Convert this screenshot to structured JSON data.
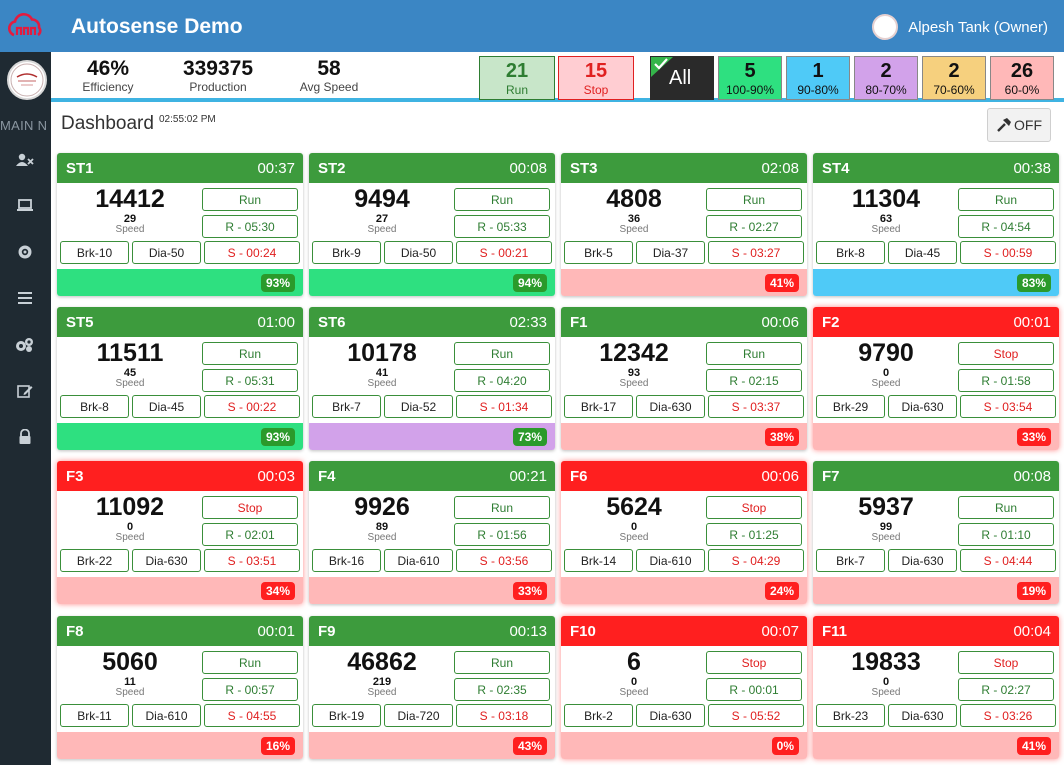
{
  "app": {
    "title": "Autosense Demo"
  },
  "user": {
    "name": "Alpesh Tank (Owner)"
  },
  "sidebar": {
    "section_label": "MAIN N"
  },
  "stats": [
    {
      "value": "46%",
      "label": "Efficiency"
    },
    {
      "value": "339375",
      "label": "Production"
    },
    {
      "value": "58",
      "label": "Avg Speed"
    }
  ],
  "filters": {
    "run": {
      "count": "21",
      "label": "Run"
    },
    "stop": {
      "count": "15",
      "label": "Stop"
    },
    "all": {
      "label": "All"
    },
    "ranges": [
      {
        "count": "5",
        "label": "100-90%",
        "color": "#2ee080"
      },
      {
        "count": "1",
        "label": "90-80%",
        "color": "#4fcaf7"
      },
      {
        "count": "2",
        "label": "80-70%",
        "color": "#d2a2ea"
      },
      {
        "count": "2",
        "label": "70-60%",
        "color": "#f6d07e"
      },
      {
        "count": "26",
        "label": "60-0%",
        "color": "#ffb8b8"
      }
    ]
  },
  "dashboard": {
    "title": "Dashboard",
    "time": "02:55:02 PM",
    "toggle_label": "OFF"
  },
  "labels": {
    "speed": "Speed"
  },
  "colors": {
    "run_head": "#3d9b3d",
    "stop_head": "#ff1f1f",
    "badge_green": "#2b9a2b",
    "badge_red": "#ff1f1f",
    "band_high": "#2ee080",
    "band_mid": "#4fcaf7",
    "band_70": "#d2a2ea",
    "band_low": "#ffb8b8"
  },
  "machines": [
    {
      "name": "ST1",
      "time": "00:37",
      "production": "14412",
      "speed": "29",
      "status": "Run",
      "run": "R - 05:30",
      "brk": "Brk-10",
      "dia": "Dia-50",
      "stop": "S - 00:24",
      "efficiency": "93%",
      "band": "high"
    },
    {
      "name": "ST2",
      "time": "00:08",
      "production": "9494",
      "speed": "27",
      "status": "Run",
      "run": "R - 05:33",
      "brk": "Brk-9",
      "dia": "Dia-50",
      "stop": "S - 00:21",
      "efficiency": "94%",
      "band": "high"
    },
    {
      "name": "ST3",
      "time": "02:08",
      "production": "4808",
      "speed": "36",
      "status": "Run",
      "run": "R - 02:27",
      "brk": "Brk-5",
      "dia": "Dia-37",
      "stop": "S - 03:27",
      "efficiency": "41%",
      "band": "low"
    },
    {
      "name": "ST4",
      "time": "00:38",
      "production": "11304",
      "speed": "63",
      "status": "Run",
      "run": "R - 04:54",
      "brk": "Brk-8",
      "dia": "Dia-45",
      "stop": "S - 00:59",
      "efficiency": "83%",
      "band": "mid"
    },
    {
      "name": "ST5",
      "time": "01:00",
      "production": "11511",
      "speed": "45",
      "status": "Run",
      "run": "R - 05:31",
      "brk": "Brk-8",
      "dia": "Dia-45",
      "stop": "S - 00:22",
      "efficiency": "93%",
      "band": "high"
    },
    {
      "name": "ST6",
      "time": "02:33",
      "production": "10178",
      "speed": "41",
      "status": "Run",
      "run": "R - 04:20",
      "brk": "Brk-7",
      "dia": "Dia-52",
      "stop": "S - 01:34",
      "efficiency": "73%",
      "band": "p70"
    },
    {
      "name": "F1",
      "time": "00:06",
      "production": "12342",
      "speed": "93",
      "status": "Run",
      "run": "R - 02:15",
      "brk": "Brk-17",
      "dia": "Dia-630",
      "stop": "S - 03:37",
      "efficiency": "38%",
      "band": "low"
    },
    {
      "name": "F2",
      "time": "00:01",
      "production": "9790",
      "speed": "0",
      "status": "Stop",
      "run": "R - 01:58",
      "brk": "Brk-29",
      "dia": "Dia-630",
      "stop": "S - 03:54",
      "efficiency": "33%",
      "band": "low"
    },
    {
      "name": "F3",
      "time": "00:03",
      "production": "11092",
      "speed": "0",
      "status": "Stop",
      "run": "R - 02:01",
      "brk": "Brk-22",
      "dia": "Dia-630",
      "stop": "S - 03:51",
      "efficiency": "34%",
      "band": "low"
    },
    {
      "name": "F4",
      "time": "00:21",
      "production": "9926",
      "speed": "89",
      "status": "Run",
      "run": "R - 01:56",
      "brk": "Brk-16",
      "dia": "Dia-610",
      "stop": "S - 03:56",
      "efficiency": "33%",
      "band": "low"
    },
    {
      "name": "F6",
      "time": "00:06",
      "production": "5624",
      "speed": "0",
      "status": "Stop",
      "run": "R - 01:25",
      "brk": "Brk-14",
      "dia": "Dia-610",
      "stop": "S - 04:29",
      "efficiency": "24%",
      "band": "low"
    },
    {
      "name": "F7",
      "time": "00:08",
      "production": "5937",
      "speed": "99",
      "status": "Run",
      "run": "R - 01:10",
      "brk": "Brk-7",
      "dia": "Dia-630",
      "stop": "S - 04:44",
      "efficiency": "19%",
      "band": "low"
    },
    {
      "name": "F8",
      "time": "00:01",
      "production": "5060",
      "speed": "11",
      "status": "Run",
      "run": "R - 00:57",
      "brk": "Brk-11",
      "dia": "Dia-610",
      "stop": "S - 04:55",
      "efficiency": "16%",
      "band": "low"
    },
    {
      "name": "F9",
      "time": "00:13",
      "production": "46862",
      "speed": "219",
      "status": "Run",
      "run": "R - 02:35",
      "brk": "Brk-19",
      "dia": "Dia-720",
      "stop": "S - 03:18",
      "efficiency": "43%",
      "band": "low"
    },
    {
      "name": "F10",
      "time": "00:07",
      "production": "6",
      "speed": "0",
      "status": "Stop",
      "run": "R - 00:01",
      "brk": "Brk-2",
      "dia": "Dia-630",
      "stop": "S - 05:52",
      "efficiency": "0%",
      "band": "low"
    },
    {
      "name": "F11",
      "time": "00:04",
      "production": "19833",
      "speed": "0",
      "status": "Stop",
      "run": "R - 02:27",
      "brk": "Brk-23",
      "dia": "Dia-630",
      "stop": "S - 03:26",
      "efficiency": "41%",
      "band": "low"
    }
  ]
}
